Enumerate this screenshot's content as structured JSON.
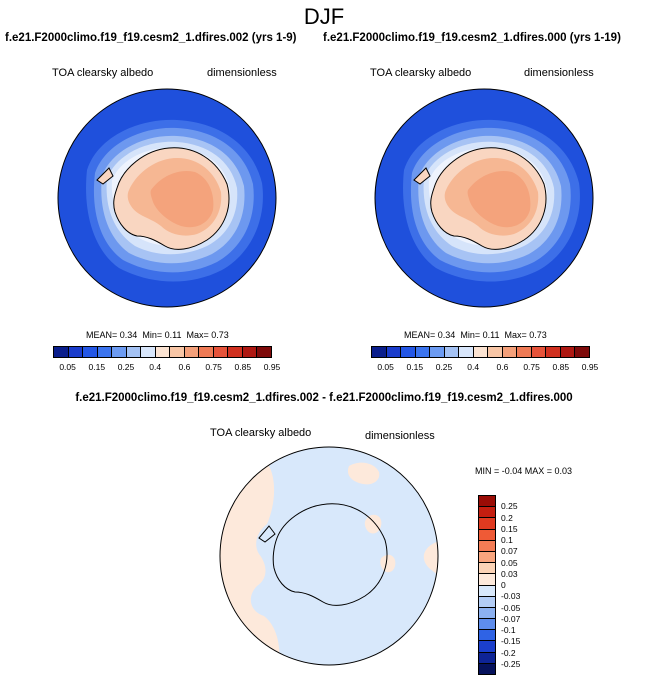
{
  "figure": {
    "title": "DJF",
    "left_case": "f.e21.F2000climo.f19_f19.cesm2_1.dfires.002 (yrs 1-9)",
    "right_case": "f.e21.F2000climo.f19_f19.cesm2_1.dfires.000 (yrs 1-19)",
    "diff_title": "f.e21.F2000climo.f19_f19.cesm2_1.dfires.002 - f.e21.F2000climo.f19_f19.cesm2_1.dfires.000"
  },
  "panels": [
    {
      "variable": "TOA clearsky albedo",
      "units": "dimensionless",
      "mean_label": "MEAN=",
      "mean": "0.34",
      "min_label": "Min=",
      "min": "0.11",
      "max_label": "Max=",
      "max": "0.73"
    },
    {
      "variable": "TOA clearsky albedo",
      "units": "dimensionless",
      "mean_label": "MEAN=",
      "mean": "0.34",
      "min_label": "Min=",
      "min": "0.11",
      "max_label": "Max=",
      "max": "0.73"
    }
  ],
  "diff_panel": {
    "variable": "TOA clearsky albedo",
    "units": "dimensionless",
    "stats": "MIN = -0.04 MAX =  0.03"
  },
  "colorbar_main": {
    "colors": [
      "#0a1e8c",
      "#1a3ccc",
      "#2457e6",
      "#3b74ef",
      "#6c9bf2",
      "#a4c2f4",
      "#d8e6fb",
      "#fbe3d2",
      "#f8c6a6",
      "#f4a07a",
      "#ef7a55",
      "#e6533a",
      "#d0301f",
      "#ae1812",
      "#7e0a0a"
    ],
    "labels": [
      "0.05",
      "0.15",
      "0.25",
      "0.4",
      "0.6",
      "0.75",
      "0.85",
      "0.95"
    ]
  },
  "colorbar_diff": {
    "colors": [
      "#9a0c06",
      "#c41e10",
      "#e03a20",
      "#ef5a36",
      "#f47c55",
      "#f8a57e",
      "#fbd3b6",
      "#fde9db",
      "#d8e8fb",
      "#b3cdf6",
      "#8cb1f1",
      "#5e8ded",
      "#2f63e5",
      "#1b3fcc",
      "#0e2496",
      "#06125c"
    ],
    "labels": [
      "0.25",
      "0.2",
      "0.15",
      "0.1",
      "0.07",
      "0.05",
      "0.03",
      "0",
      "-0.03",
      "-0.05",
      "-0.07",
      "-0.1",
      "-0.15",
      "-0.2",
      "-0.25"
    ]
  },
  "map_colors": {
    "ocean_far": "#1f50dc",
    "ice_1": "#3d6fe8",
    "ice_2": "#6d98ef",
    "ice_3": "#a7c3f4",
    "ice_4": "#d6e4fa",
    "ice_5": "#eef3fd",
    "land_edge": "#f9d6c1",
    "land_mid": "#f6b793",
    "land_core": "#f4a37c",
    "diff_neg": "#d8e8fb",
    "diff_pos": "#fde9db"
  }
}
